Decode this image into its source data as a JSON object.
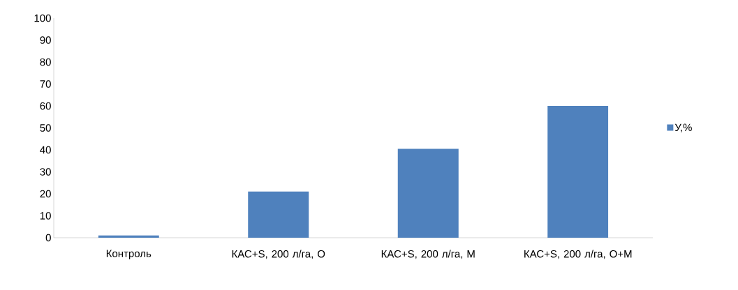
{
  "chart_data": {
    "type": "bar",
    "categories": [
      "Контроль",
      "КАС+S, 200 л/га, О",
      "КАС+S, 200 л/га, М",
      "КАС+S, 200 л/га, О+М"
    ],
    "series": [
      {
        "name": "У,%",
        "color": "#4f81bd",
        "values": [
          1,
          21,
          40.5,
          60
        ]
      }
    ],
    "ylim": [
      0,
      100
    ],
    "yticks": [
      0,
      10,
      20,
      30,
      40,
      50,
      60,
      70,
      80,
      90,
      100
    ],
    "grid": false,
    "legend": "right"
  }
}
